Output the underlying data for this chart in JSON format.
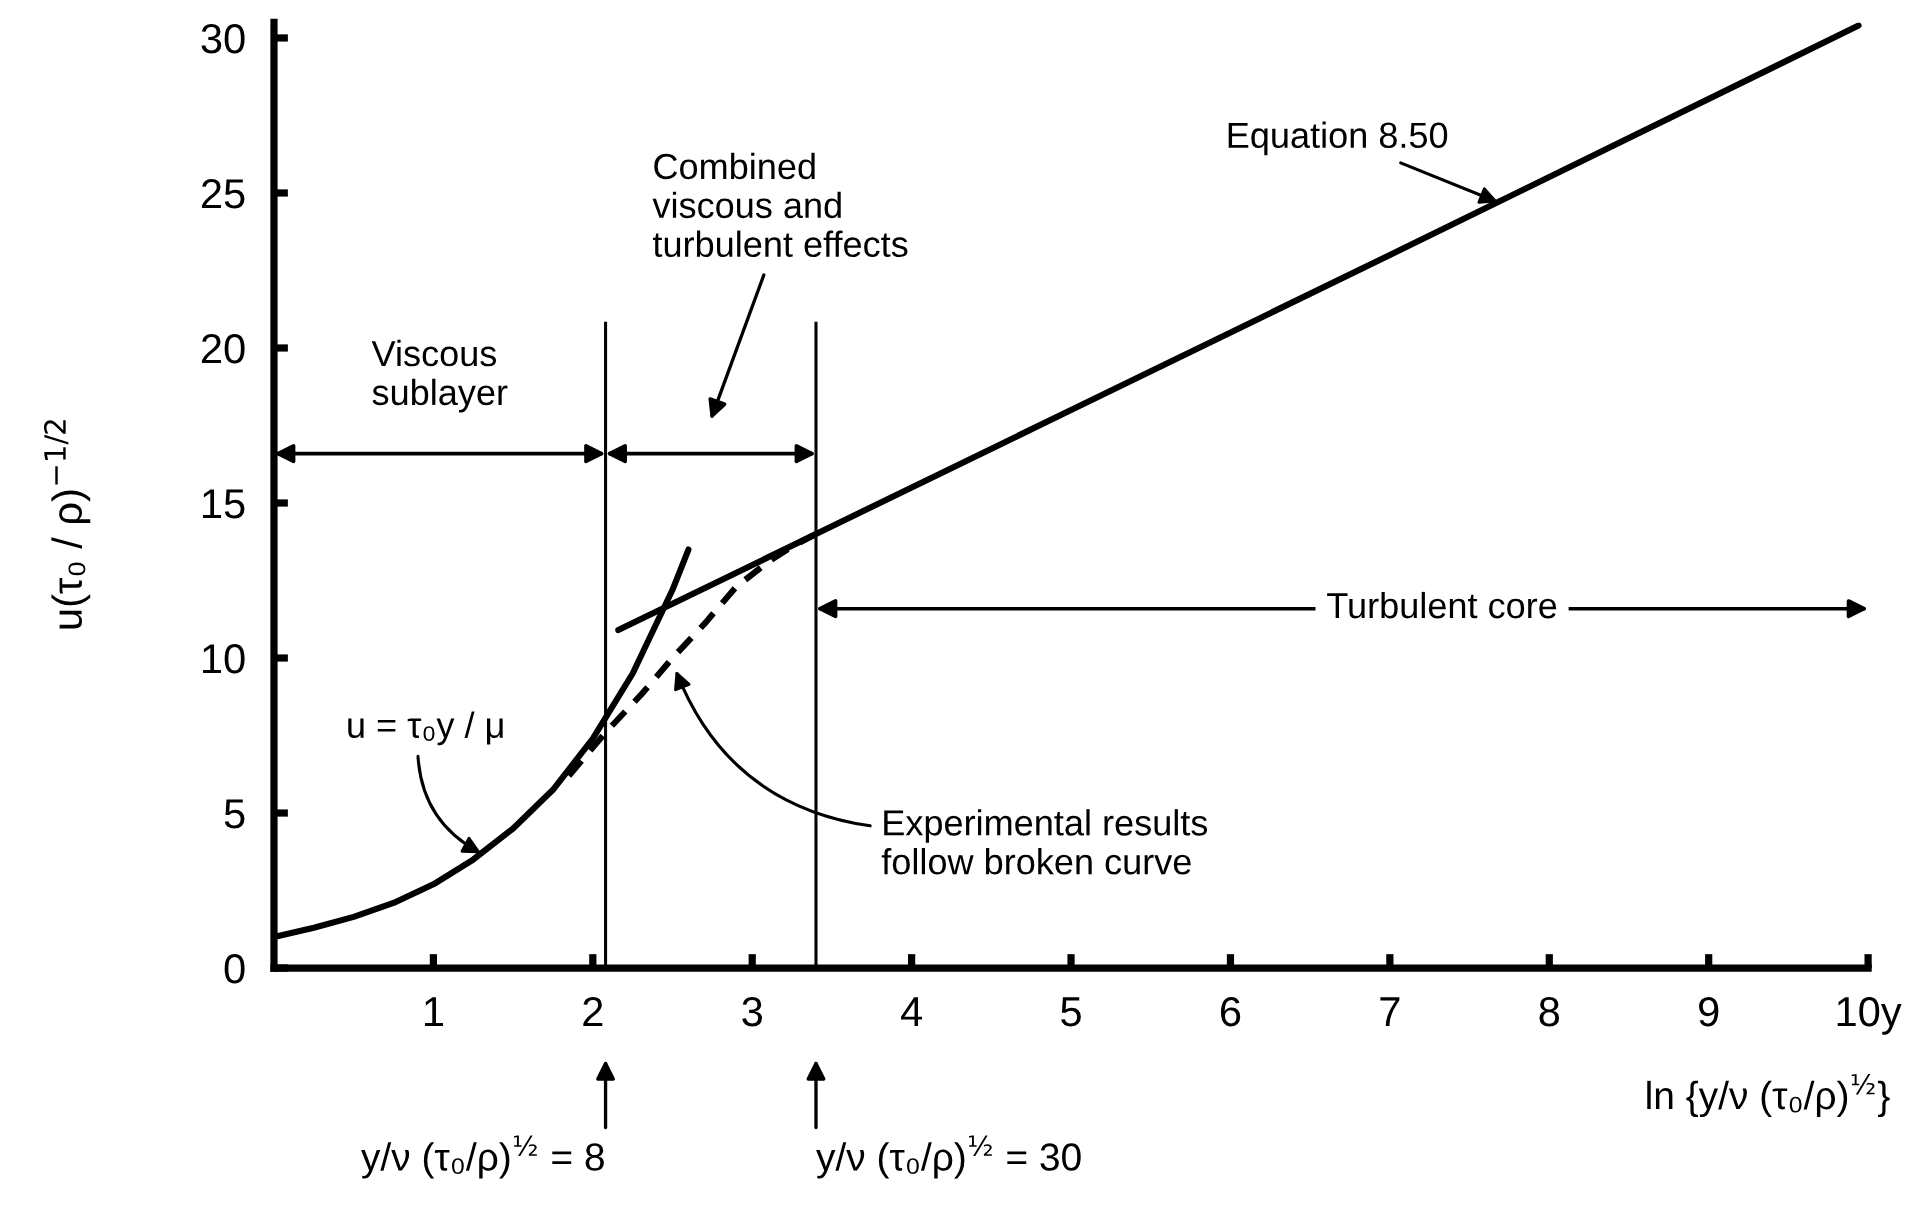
{
  "chart_data": {
    "type": "line",
    "xlabel": "ln {y/ν (τ₀/ρ)$^{½}$}",
    "ylabel": "u(τ₀ / ρ)$^{−1/2}$",
    "xlim": [
      0,
      10
    ],
    "ylim": [
      0,
      30.5
    ],
    "xticks": [
      1,
      2,
      3,
      4,
      5,
      6,
      7,
      8,
      9,
      {
        "value": 10,
        "label": "10y"
      }
    ],
    "yticks": [
      0,
      5,
      10,
      15,
      20,
      25,
      30
    ],
    "series": [
      {
        "color": "#000000",
        "x": [
          0,
          0.25,
          0.5,
          0.75,
          1,
          1.25,
          1.5,
          1.75,
          2,
          2.25,
          2.5,
          2.6
        ],
        "values": [
          1.0,
          1.3,
          1.65,
          2.1,
          2.7,
          3.5,
          4.5,
          5.75,
          7.4,
          9.5,
          12.2,
          13.5
        ]
      },
      {
        "color": "#000000",
        "x": [
          2.16,
          3.4,
          5,
          7,
          9.94
        ],
        "values": [
          10.9,
          14.0,
          18.0,
          23.0,
          30.4
        ]
      },
      {
        "color": "#000000",
        "line_style": "dashed",
        "x": [
          1.85,
          2.08,
          2.3,
          2.5,
          2.7,
          2.9,
          3.1,
          3.25,
          3.4
        ],
        "values": [
          6.2,
          7.6,
          8.8,
          10.0,
          11.1,
          12.3,
          13.1,
          13.6,
          14.0
        ]
      }
    ],
    "ref_lines": [
      {
        "axis": "x",
        "value": 2.08
      },
      {
        "axis": "x",
        "value": 3.4
      }
    ],
    "annotations": [
      "Viscous\nsublayer",
      "Combined\nviscous and\nturbulent effects",
      "Turbulent core",
      {
        "text": "Equation 8.50",
        "x": 7.68,
        "y": 24.7
      },
      {
        "text": "u = τ₀y / μ",
        "x": 1.3,
        "y": 3.7
      },
      {
        "text": "Experimental results\nfollow broken curve",
        "x": 2.52,
        "y": 9.6
      },
      "y/ν (τ₀/ρ)$^{½}$ = 8",
      "y/ν (τ₀/ρ)$^{½}$ = 30"
    ]
  }
}
